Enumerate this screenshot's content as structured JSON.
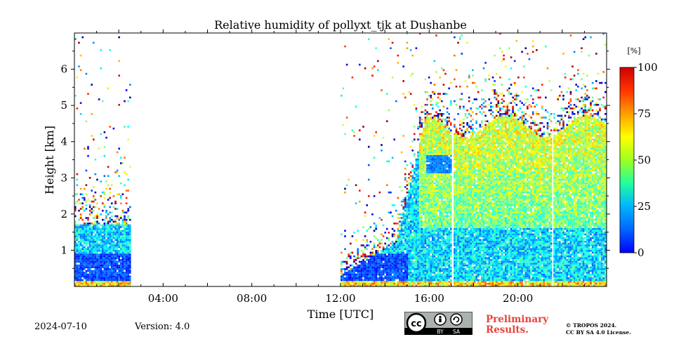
{
  "chart_data": {
    "type": "heatmap",
    "title": "Relative humidity of pollyxt_tjk at Dushanbe",
    "xlabel": "Time [UTC]",
    "ylabel": "Height [km]",
    "xlim_hours": [
      0,
      24
    ],
    "ylim_km": [
      0,
      7
    ],
    "x_ticks": [
      {
        "hour": 4,
        "label": "04:00"
      },
      {
        "hour": 8,
        "label": "08:00"
      },
      {
        "hour": 12,
        "label": "12:00"
      },
      {
        "hour": 16,
        "label": "16:00"
      },
      {
        "hour": 20,
        "label": "20:00"
      }
    ],
    "y_ticks": [
      {
        "km": 1,
        "label": "1"
      },
      {
        "km": 2,
        "label": "2"
      },
      {
        "km": 3,
        "label": "3"
      },
      {
        "km": 4,
        "label": "4"
      },
      {
        "km": 5,
        "label": "5"
      },
      {
        "km": 6,
        "label": "6"
      }
    ],
    "colorbar": {
      "unit": "[%]",
      "range": [
        0,
        100
      ],
      "ticks": [
        {
          "value": 0,
          "label": "0"
        },
        {
          "value": 25,
          "label": "25"
        },
        {
          "value": 50,
          "label": "50"
        },
        {
          "value": 75,
          "label": "75"
        },
        {
          "value": 100,
          "label": "100"
        }
      ],
      "colormap": "jet"
    },
    "data_segments_hours": [
      [
        0.0,
        2.5
      ],
      [
        12.0,
        17.0
      ],
      [
        17.1,
        21.5
      ],
      [
        21.6,
        24.0
      ]
    ],
    "data_gaps_hours": [
      [
        2.5,
        12.0
      ],
      [
        17.0,
        17.1
      ],
      [
        21.5,
        21.6
      ]
    ],
    "humid_layer_top_km": {
      "early": 1.7,
      "afternoon": 4.6
    }
  },
  "footer": {
    "date": "2024-07-10",
    "version": "Version: 4.0",
    "preliminary_line1": "Preliminary",
    "preliminary_line2": "Results.",
    "copyright_line1": "© TROPOS 2024.",
    "copyright_line2": "CC BY SA 4.0 License.",
    "cc_label": "cc",
    "by_label": "BY",
    "sa_label": "SA"
  }
}
